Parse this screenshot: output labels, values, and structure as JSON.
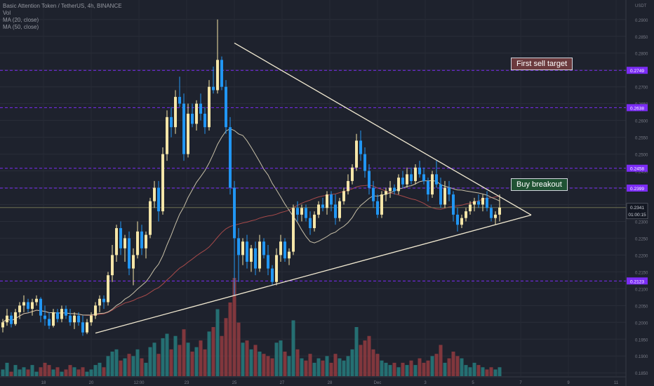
{
  "legend": {
    "symbol": "Basic Attention Token / TetherUS, 4h, BINANCE",
    "vol": "Vol",
    "ma20": "MA (20, close)",
    "ma50": "MA (50, close)"
  },
  "colors": {
    "background": "#1e222d",
    "up": "#f5e6a8",
    "down": "#2196f3",
    "vol_up": "#26787a",
    "vol_down": "#8c3a3f",
    "ma20": "#c8c0a8",
    "ma50": "#a84a4a",
    "level": "#7b2cf5",
    "trendline": "#f2ead2",
    "price_line": "#6d6f52"
  },
  "annotations": {
    "sell_target": "First sell target",
    "buy_breakout": "Buy breakout"
  },
  "chart_data": {
    "type": "candlestick",
    "y_axis": {
      "unit_label": "USDT",
      "range": [
        0.184,
        0.2958
      ],
      "tick_labels": [
        "0.2900",
        "0.2850",
        "0.2800",
        "0.2750",
        "0.2700",
        "0.2650",
        "0.2600",
        "0.2550",
        "0.2500",
        "0.2450",
        "0.2400",
        "0.2350",
        "0.2300",
        "0.2250",
        "0.2200",
        "0.2150",
        "0.2100",
        "0.2050",
        "0.2000",
        "0.1950",
        "0.1900",
        "0.1850"
      ]
    },
    "x_axis": {
      "tick_labels": [
        "18",
        "20",
        "12:00",
        "23",
        "25",
        "27",
        "28",
        "Dec",
        "3",
        "5",
        "7",
        "9",
        "11"
      ]
    },
    "levels": [
      {
        "label": "0.2749",
        "value": 0.2749
      },
      {
        "label": "0.2638",
        "value": 0.2638
      },
      {
        "label": "0.2458",
        "value": 0.2458
      },
      {
        "label": "0.2399",
        "value": 0.2399
      },
      {
        "label": "0.2123",
        "value": 0.2123
      }
    ],
    "last_price": {
      "label": "0.2341",
      "countdown": "01:00:15",
      "value": 0.2341
    },
    "candles": [
      [
        0.1985,
        0.201,
        0.197,
        0.2
      ],
      [
        0.2,
        0.204,
        0.199,
        0.202
      ],
      [
        0.202,
        0.203,
        0.1985,
        0.1995
      ],
      [
        0.1995,
        0.204,
        0.199,
        0.203
      ],
      [
        0.203,
        0.206,
        0.201,
        0.205
      ],
      [
        0.205,
        0.208,
        0.203,
        0.206
      ],
      [
        0.206,
        0.207,
        0.203,
        0.204
      ],
      [
        0.204,
        0.207,
        0.202,
        0.206
      ],
      [
        0.206,
        0.208,
        0.205,
        0.207
      ],
      [
        0.207,
        0.2075,
        0.2,
        0.202
      ],
      [
        0.202,
        0.205,
        0.199,
        0.201
      ],
      [
        0.201,
        0.203,
        0.198,
        0.199
      ],
      [
        0.199,
        0.204,
        0.1985,
        0.203
      ],
      [
        0.203,
        0.204,
        0.2,
        0.201
      ],
      [
        0.201,
        0.205,
        0.2,
        0.204
      ],
      [
        0.204,
        0.205,
        0.201,
        0.202
      ],
      [
        0.202,
        0.204,
        0.199,
        0.2
      ],
      [
        0.2,
        0.203,
        0.198,
        0.202
      ],
      [
        0.202,
        0.203,
        0.199,
        0.2
      ],
      [
        0.2,
        0.202,
        0.196,
        0.197
      ],
      [
        0.197,
        0.201,
        0.1965,
        0.2
      ],
      [
        0.2,
        0.203,
        0.199,
        0.202
      ],
      [
        0.202,
        0.206,
        0.201,
        0.205
      ],
      [
        0.205,
        0.208,
        0.203,
        0.207
      ],
      [
        0.207,
        0.208,
        0.204,
        0.206
      ],
      [
        0.206,
        0.215,
        0.205,
        0.214
      ],
      [
        0.214,
        0.223,
        0.212,
        0.22
      ],
      [
        0.22,
        0.229,
        0.218,
        0.228
      ],
      [
        0.228,
        0.23,
        0.22,
        0.222
      ],
      [
        0.222,
        0.226,
        0.218,
        0.225
      ],
      [
        0.225,
        0.227,
        0.214,
        0.216
      ],
      [
        0.216,
        0.222,
        0.211,
        0.22
      ],
      [
        0.22,
        0.23,
        0.219,
        0.227
      ],
      [
        0.227,
        0.229,
        0.22,
        0.222
      ],
      [
        0.222,
        0.227,
        0.219,
        0.226
      ],
      [
        0.226,
        0.237,
        0.225,
        0.236
      ],
      [
        0.236,
        0.242,
        0.234,
        0.24
      ],
      [
        0.24,
        0.242,
        0.23,
        0.233
      ],
      [
        0.233,
        0.252,
        0.232,
        0.25
      ],
      [
        0.25,
        0.263,
        0.248,
        0.261
      ],
      [
        0.261,
        0.264,
        0.255,
        0.258
      ],
      [
        0.258,
        0.269,
        0.256,
        0.267
      ],
      [
        0.267,
        0.273,
        0.264,
        0.265
      ],
      [
        0.265,
        0.268,
        0.248,
        0.25
      ],
      [
        0.25,
        0.265,
        0.249,
        0.262
      ],
      [
        0.262,
        0.265,
        0.258,
        0.259
      ],
      [
        0.259,
        0.266,
        0.257,
        0.265
      ],
      [
        0.265,
        0.268,
        0.26,
        0.262
      ],
      [
        0.262,
        0.264,
        0.256,
        0.258
      ],
      [
        0.258,
        0.272,
        0.257,
        0.27
      ],
      [
        0.27,
        0.276,
        0.268,
        0.269
      ],
      [
        0.269,
        0.29,
        0.268,
        0.278
      ],
      [
        0.278,
        0.279,
        0.269,
        0.27
      ],
      [
        0.27,
        0.272,
        0.256,
        0.258
      ],
      [
        0.258,
        0.261,
        0.238,
        0.24
      ],
      [
        0.24,
        0.242,
        0.208,
        0.225
      ],
      [
        0.225,
        0.228,
        0.212,
        0.22
      ],
      [
        0.22,
        0.225,
        0.217,
        0.224
      ],
      [
        0.224,
        0.226,
        0.216,
        0.218
      ],
      [
        0.218,
        0.223,
        0.215,
        0.222
      ],
      [
        0.222,
        0.224,
        0.214,
        0.216
      ],
      [
        0.216,
        0.226,
        0.215,
        0.224
      ],
      [
        0.224,
        0.225,
        0.219,
        0.22
      ],
      [
        0.22,
        0.223,
        0.214,
        0.216
      ],
      [
        0.216,
        0.217,
        0.211,
        0.212
      ],
      [
        0.212,
        0.222,
        0.211,
        0.22
      ],
      [
        0.22,
        0.226,
        0.218,
        0.224
      ],
      [
        0.224,
        0.225,
        0.218,
        0.219
      ],
      [
        0.219,
        0.222,
        0.217,
        0.221
      ],
      [
        0.221,
        0.235,
        0.22,
        0.234
      ],
      [
        0.234,
        0.236,
        0.23,
        0.232
      ],
      [
        0.232,
        0.235,
        0.23,
        0.234
      ],
      [
        0.234,
        0.235,
        0.23,
        0.231
      ],
      [
        0.231,
        0.233,
        0.226,
        0.228
      ],
      [
        0.228,
        0.233,
        0.227,
        0.232
      ],
      [
        0.232,
        0.236,
        0.231,
        0.235
      ],
      [
        0.235,
        0.237,
        0.233,
        0.234
      ],
      [
        0.234,
        0.239,
        0.232,
        0.238
      ],
      [
        0.238,
        0.239,
        0.233,
        0.235
      ],
      [
        0.235,
        0.238,
        0.229,
        0.231
      ],
      [
        0.231,
        0.237,
        0.23,
        0.236
      ],
      [
        0.236,
        0.24,
        0.235,
        0.239
      ],
      [
        0.239,
        0.244,
        0.238,
        0.242
      ],
      [
        0.242,
        0.247,
        0.241,
        0.246
      ],
      [
        0.246,
        0.256,
        0.245,
        0.254
      ],
      [
        0.254,
        0.257,
        0.248,
        0.25
      ],
      [
        0.25,
        0.252,
        0.243,
        0.245
      ],
      [
        0.245,
        0.247,
        0.238,
        0.24
      ],
      [
        0.24,
        0.242,
        0.234,
        0.236
      ],
      [
        0.236,
        0.238,
        0.231,
        0.232
      ],
      [
        0.232,
        0.239,
        0.231,
        0.238
      ],
      [
        0.238,
        0.24,
        0.236,
        0.239
      ],
      [
        0.239,
        0.242,
        0.237,
        0.24
      ],
      [
        0.24,
        0.241,
        0.238,
        0.239
      ],
      [
        0.239,
        0.244,
        0.238,
        0.243
      ],
      [
        0.243,
        0.245,
        0.24,
        0.241
      ],
      [
        0.241,
        0.246,
        0.24,
        0.244
      ],
      [
        0.244,
        0.246,
        0.241,
        0.242
      ],
      [
        0.242,
        0.247,
        0.241,
        0.246
      ],
      [
        0.246,
        0.248,
        0.243,
        0.244
      ],
      [
        0.244,
        0.246,
        0.241,
        0.242
      ],
      [
        0.242,
        0.243,
        0.236,
        0.238
      ],
      [
        0.238,
        0.245,
        0.237,
        0.244
      ],
      [
        0.244,
        0.248,
        0.24,
        0.241
      ],
      [
        0.241,
        0.243,
        0.234,
        0.235
      ],
      [
        0.235,
        0.242,
        0.234,
        0.24
      ],
      [
        0.24,
        0.242,
        0.236,
        0.238
      ],
      [
        0.238,
        0.239,
        0.23,
        0.232
      ],
      [
        0.232,
        0.234,
        0.227,
        0.229
      ],
      [
        0.229,
        0.232,
        0.228,
        0.231
      ],
      [
        0.231,
        0.234,
        0.23,
        0.233
      ],
      [
        0.233,
        0.236,
        0.232,
        0.235
      ],
      [
        0.235,
        0.237,
        0.233,
        0.236
      ],
      [
        0.236,
        0.238,
        0.234,
        0.235
      ],
      [
        0.235,
        0.238,
        0.233,
        0.237
      ],
      [
        0.237,
        0.239,
        0.233,
        0.234
      ],
      [
        0.234,
        0.235,
        0.23,
        0.231
      ],
      [
        0.231,
        0.233,
        0.229,
        0.232
      ],
      [
        0.232,
        0.238,
        0.23,
        0.2341
      ]
    ],
    "volumes": [
      3,
      6,
      2,
      5,
      3,
      4,
      3,
      5,
      2,
      4,
      6,
      5,
      3,
      4,
      2,
      3,
      5,
      4,
      3,
      4,
      2,
      3,
      5,
      6,
      4,
      9,
      11,
      12,
      7,
      8,
      10,
      9,
      12,
      8,
      6,
      13,
      15,
      10,
      17,
      19,
      12,
      18,
      14,
      21,
      15,
      11,
      13,
      16,
      12,
      20,
      22,
      30,
      18,
      26,
      33,
      44,
      24,
      15,
      16,
      12,
      14,
      11,
      10,
      9,
      8,
      15,
      16,
      11,
      9,
      25,
      12,
      8,
      7,
      10,
      6,
      8,
      7,
      9,
      6,
      10,
      8,
      7,
      9,
      12,
      22,
      14,
      16,
      18,
      12,
      10,
      7,
      6,
      5,
      6,
      4,
      6,
      5,
      7,
      5,
      8,
      6,
      7,
      9,
      10,
      14,
      6,
      8,
      11,
      9,
      8,
      5,
      4,
      6,
      5,
      4,
      3,
      4,
      3,
      4,
      5,
      7
    ]
  }
}
